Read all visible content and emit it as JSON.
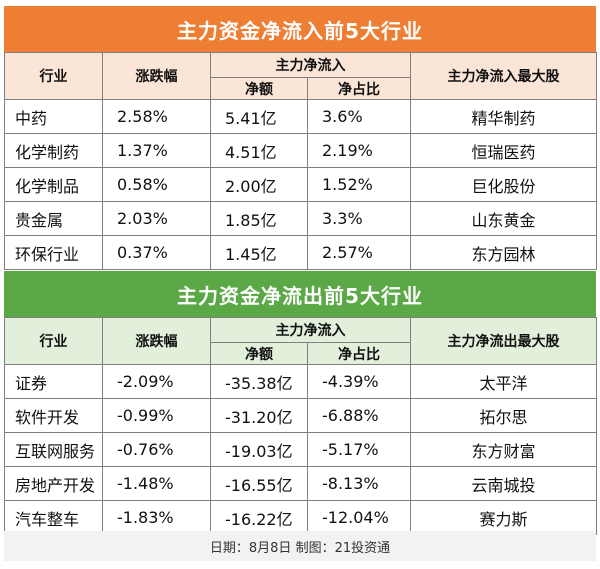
{
  "inflow": {
    "title": "主力资金净流入前5大行业",
    "headers": {
      "industry": "行业",
      "change": "涨跌幅",
      "net_group": "主力净流入",
      "net_amount": "净额",
      "net_ratio": "净占比",
      "top_stock": "主力净流入最大股"
    },
    "rows": [
      {
        "industry": "中药",
        "change": "2.58%",
        "amount": "5.41亿",
        "ratio": "3.6%",
        "stock": "精华制药"
      },
      {
        "industry": "化学制药",
        "change": "1.37%",
        "amount": "4.51亿",
        "ratio": "2.19%",
        "stock": "恒瑞医药"
      },
      {
        "industry": "化学制品",
        "change": "0.58%",
        "amount": "2.00亿",
        "ratio": "1.52%",
        "stock": "巨化股份"
      },
      {
        "industry": "贵金属",
        "change": "2.03%",
        "amount": "1.85亿",
        "ratio": "3.3%",
        "stock": "山东黄金"
      },
      {
        "industry": "环保行业",
        "change": "0.37%",
        "amount": "1.45亿",
        "ratio": "2.57%",
        "stock": "东方园林"
      }
    ]
  },
  "outflow": {
    "title": "主力资金净流出前5大行业",
    "headers": {
      "industry": "行业",
      "change": "涨跌幅",
      "net_group": "主力净流入",
      "net_amount": "净额",
      "net_ratio": "净占比",
      "top_stock": "主力净流出最大股"
    },
    "rows": [
      {
        "industry": "证券",
        "change": "-2.09%",
        "amount": "-35.38亿",
        "ratio": "-4.39%",
        "stock": "太平洋"
      },
      {
        "industry": "软件开发",
        "change": "-0.99%",
        "amount": "-31.20亿",
        "ratio": "-6.88%",
        "stock": "拓尔思"
      },
      {
        "industry": "互联网服务",
        "change": "-0.76%",
        "amount": "-19.03亿",
        "ratio": "-5.17%",
        "stock": "东方财富"
      },
      {
        "industry": "房地产开发",
        "change": "-1.48%",
        "amount": "-16.55亿",
        "ratio": "-8.13%",
        "stock": "云南城投"
      },
      {
        "industry": "汽车整车",
        "change": "-1.83%",
        "amount": "-16.22亿",
        "ratio": "-12.04%",
        "stock": "赛力斯"
      }
    ]
  },
  "footer": "日期：8月8日 制图：21投资通",
  "colors": {
    "inflow_title": "#ee7e33",
    "inflow_header": "#fbe5d6",
    "outflow_title": "#5aa846",
    "outflow_header": "#e2efda"
  }
}
